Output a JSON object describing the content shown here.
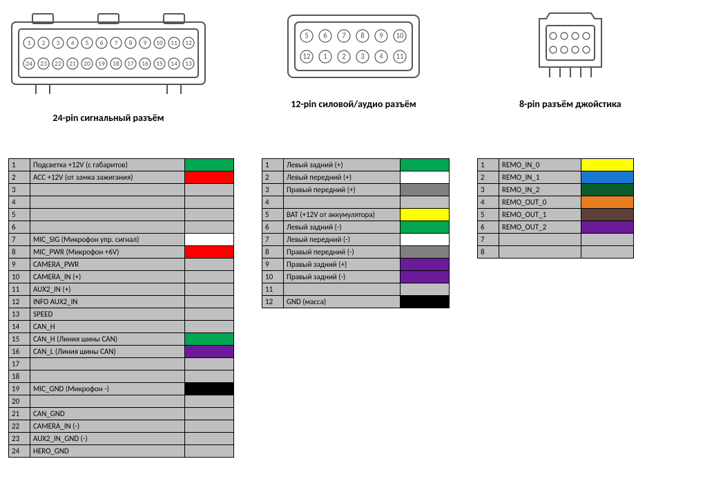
{
  "colors": {
    "cell_bg": "#bfbfbf",
    "border": "#000000",
    "none": null,
    "green": "#00a651",
    "red": "#ff0000",
    "white": "#ffffff",
    "yellow": "#ffff00",
    "gray": "#808080",
    "purple": "#6a1b9a",
    "black": "#000000",
    "orange": "#e67e22",
    "brown": "#5d4037",
    "blue": "#1976d2",
    "darkgrn": "#0a5c2c"
  },
  "connector24": {
    "title": "24-pin сигнальный разъём",
    "pins_top": [
      1,
      2,
      3,
      4,
      5,
      6,
      7,
      8,
      9,
      10,
      11,
      12
    ],
    "pins_bottom": [
      24,
      23,
      22,
      21,
      20,
      19,
      18,
      17,
      16,
      15,
      14,
      13
    ],
    "rows": [
      {
        "n": 1,
        "label": "Подсветка +12V  (с габаритов)",
        "c": "green"
      },
      {
        "n": 2,
        "label": "ACC +12V  (от замка зажигания)",
        "c": "red"
      },
      {
        "n": 3,
        "label": "",
        "c": null
      },
      {
        "n": 4,
        "label": "",
        "c": null
      },
      {
        "n": 5,
        "label": "",
        "c": null
      },
      {
        "n": 6,
        "label": "",
        "c": null
      },
      {
        "n": 7,
        "label": "MIC_SIG (Микрофон упр. сигнал)",
        "c": "white"
      },
      {
        "n": 8,
        "label": "MIC_PWR (Микрофон  +6V)",
        "c": "red"
      },
      {
        "n": 9,
        "label": "CAMERA_PWR",
        "c": null
      },
      {
        "n": 10,
        "label": "CAMERA_IN (+)",
        "c": null
      },
      {
        "n": 11,
        "label": "AUX2_IN (+)",
        "c": null
      },
      {
        "n": 12,
        "label": "INFO AUX2_IN",
        "c": null
      },
      {
        "n": 13,
        "label": "SPEED",
        "c": null
      },
      {
        "n": 14,
        "label": "CAN_H",
        "c": null
      },
      {
        "n": 15,
        "label": "CAN_H (Линия шины CAN)",
        "c": "green"
      },
      {
        "n": 16,
        "label": "CAN_L (Линия шины CAN)",
        "c": "purple"
      },
      {
        "n": 17,
        "label": "",
        "c": null
      },
      {
        "n": 18,
        "label": "",
        "c": null
      },
      {
        "n": 19,
        "label": "MIC_GND (Микрофон -)",
        "c": "black"
      },
      {
        "n": 20,
        "label": "",
        "c": null
      },
      {
        "n": 21,
        "label": "CAN_GND",
        "c": null
      },
      {
        "n": 22,
        "label": "CAMERA_IN (-)",
        "c": null
      },
      {
        "n": 23,
        "label": "AUX2_IN_GND (-)",
        "c": null
      },
      {
        "n": 24,
        "label": "HERO_GND",
        "c": null
      }
    ]
  },
  "connector12": {
    "title": "12-pin силовой/аудио разъём",
    "pins_top": [
      5,
      6,
      7,
      8,
      9,
      10
    ],
    "pins_bottom": [
      12,
      1,
      2,
      3,
      4,
      11
    ],
    "rows": [
      {
        "n": 1,
        "label": "Левый задний (+)",
        "c": "green"
      },
      {
        "n": 2,
        "label": "Левый передний (+)",
        "c": "white"
      },
      {
        "n": 3,
        "label": "Правый передний (+)",
        "c": "gray"
      },
      {
        "n": 4,
        "label": "",
        "c": null
      },
      {
        "n": 5,
        "label": "BAT (+12V от аккумулятора)",
        "c": "yellow"
      },
      {
        "n": 6,
        "label": "Левый задний (-)",
        "c": "green"
      },
      {
        "n": 7,
        "label": "Левый передний (-)",
        "c": "white"
      },
      {
        "n": 8,
        "label": "Правый передний (-)",
        "c": "gray"
      },
      {
        "n": 9,
        "label": "Правый задний (+)",
        "c": "purple"
      },
      {
        "n": 10,
        "label": "Правый задний (-)",
        "c": "purple"
      },
      {
        "n": 11,
        "label": "",
        "c": null
      },
      {
        "n": 12,
        "label": "GND (масса)",
        "c": "black"
      }
    ]
  },
  "connector8": {
    "title": "8-pin разъём джойстика",
    "pins_top": [
      "",
      "",
      "",
      ""
    ],
    "pins_bottom": [
      "",
      "",
      "",
      ""
    ],
    "rows": [
      {
        "n": 1,
        "label": "REMO_IN_0",
        "c": "yellow"
      },
      {
        "n": 2,
        "label": "REMO_IN_1",
        "c": "blue"
      },
      {
        "n": 3,
        "label": "REMO_IN_2",
        "c": "darkgrn"
      },
      {
        "n": 4,
        "label": "REMO_OUT_0",
        "c": "orange"
      },
      {
        "n": 5,
        "label": "REMO_OUT_1",
        "c": "brown"
      },
      {
        "n": 6,
        "label": "REMO_OUT_2",
        "c": "purple"
      },
      {
        "n": 7,
        "label": "",
        "c": null
      },
      {
        "n": 8,
        "label": "",
        "c": null
      }
    ]
  },
  "svg_style": {
    "stroke": "#555555",
    "stroke_width": 1.5,
    "fill": "#ffffff"
  }
}
